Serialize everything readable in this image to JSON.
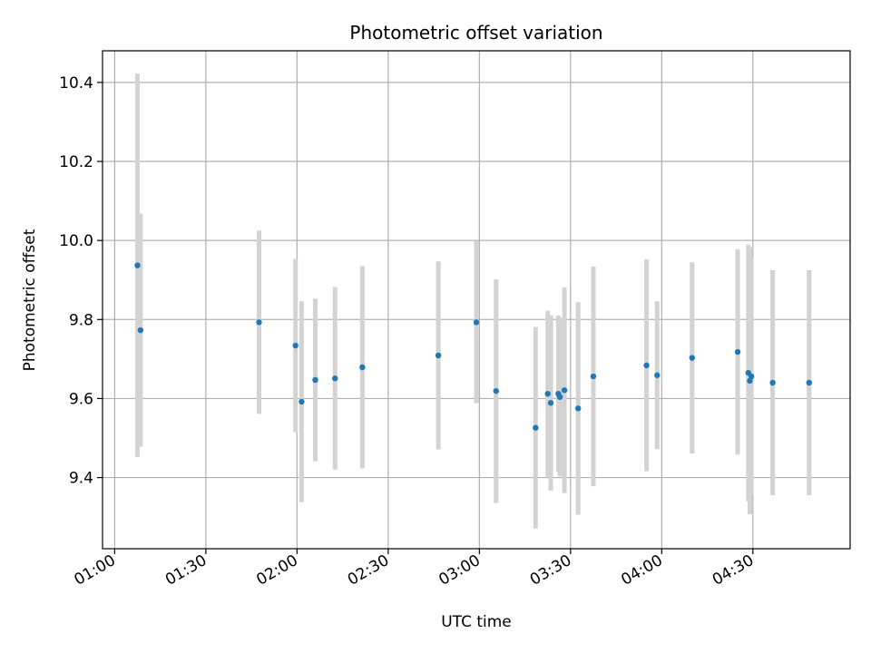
{
  "chart_data": {
    "type": "scatter",
    "title": "Photometric offset variation",
    "xlabel": "UTC time",
    "ylabel": "Photometric offset",
    "grid": true,
    "xlim": [
      "00:56",
      "05:02"
    ],
    "ylim": [
      9.22,
      10.48
    ],
    "xticks": [
      "01:00",
      "01:30",
      "02:00",
      "02:30",
      "03:00",
      "03:30",
      "04:00",
      "04:30"
    ],
    "yticks": [
      "9.4",
      "9.6",
      "9.8",
      "10.0",
      "10.2",
      "10.4"
    ],
    "colors": {
      "point": "#1f77b4",
      "errorbar": "#d3d3d3",
      "grid": "#b0b0b0"
    },
    "points": [
      {
        "x": "01:07:30",
        "y": 9.937,
        "err": 0.485
      },
      {
        "x": "01:08:30",
        "y": 9.773,
        "err": 0.295
      },
      {
        "x": "01:47:30",
        "y": 9.793,
        "err": 0.232
      },
      {
        "x": "01:59:30",
        "y": 9.734,
        "err": 0.219
      },
      {
        "x": "02:01:30",
        "y": 9.592,
        "err": 0.254
      },
      {
        "x": "02:06:00",
        "y": 9.647,
        "err": 0.206
      },
      {
        "x": "02:12:30",
        "y": 9.651,
        "err": 0.231
      },
      {
        "x": "02:21:30",
        "y": 9.679,
        "err": 0.256
      },
      {
        "x": "02:46:30",
        "y": 9.709,
        "err": 0.238
      },
      {
        "x": "02:59:00",
        "y": 9.793,
        "err": 0.205
      },
      {
        "x": "03:05:30",
        "y": 9.619,
        "err": 0.283
      },
      {
        "x": "03:18:30",
        "y": 9.526,
        "err": 0.255
      },
      {
        "x": "03:22:30",
        "y": 9.612,
        "err": 0.21
      },
      {
        "x": "03:23:30",
        "y": 9.589,
        "err": 0.222
      },
      {
        "x": "03:26:00",
        "y": 9.612,
        "err": 0.198
      },
      {
        "x": "03:26:30",
        "y": 9.604,
        "err": 0.201
      },
      {
        "x": "03:28:00",
        "y": 9.621,
        "err": 0.26
      },
      {
        "x": "03:32:30",
        "y": 9.575,
        "err": 0.269
      },
      {
        "x": "03:37:30",
        "y": 9.656,
        "err": 0.278
      },
      {
        "x": "03:55:00",
        "y": 9.684,
        "err": 0.268
      },
      {
        "x": "03:58:30",
        "y": 9.659,
        "err": 0.187
      },
      {
        "x": "04:10:00",
        "y": 9.703,
        "err": 0.242
      },
      {
        "x": "04:25:00",
        "y": 9.718,
        "err": 0.26
      },
      {
        "x": "04:28:30",
        "y": 9.665,
        "err": 0.325
      },
      {
        "x": "04:29:00",
        "y": 9.645,
        "err": 0.338
      },
      {
        "x": "04:29:30",
        "y": 9.656,
        "err": 0.3
      },
      {
        "x": "04:36:30",
        "y": 9.64,
        "err": 0.285
      },
      {
        "x": "04:48:30",
        "y": 9.64,
        "err": 0.285
      }
    ]
  }
}
